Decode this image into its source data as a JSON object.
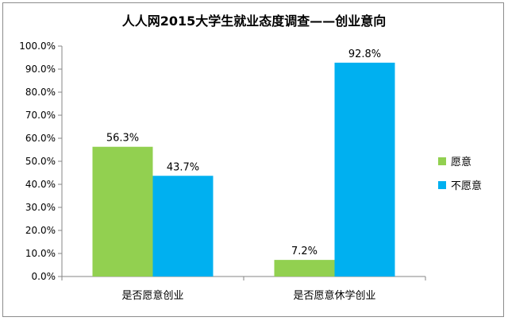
{
  "chart_data": {
    "type": "bar",
    "title": "人人网2015大学生就业态度调查——创业意向",
    "categories": [
      "是否愿意创业",
      "是否愿意休学创业"
    ],
    "series": [
      {
        "name": "愿意",
        "color": "#92d050",
        "values": [
          56.3,
          7.2
        ],
        "labels": [
          "56.3%",
          "7.2%"
        ]
      },
      {
        "name": "不愿意",
        "color": "#00b0f0",
        "values": [
          43.7,
          92.8
        ],
        "labels": [
          "43.7%",
          "92.8%"
        ]
      }
    ],
    "ylim": [
      0,
      100
    ],
    "yticks": [
      0,
      10,
      20,
      30,
      40,
      50,
      60,
      70,
      80,
      90,
      100
    ],
    "ytick_labels": [
      "0.0%",
      "10.0%",
      "20.0%",
      "30.0%",
      "40.0%",
      "50.0%",
      "60.0%",
      "70.0%",
      "80.0%",
      "90.0%",
      "100.0%"
    ],
    "grid": false,
    "legend_position": "right"
  }
}
